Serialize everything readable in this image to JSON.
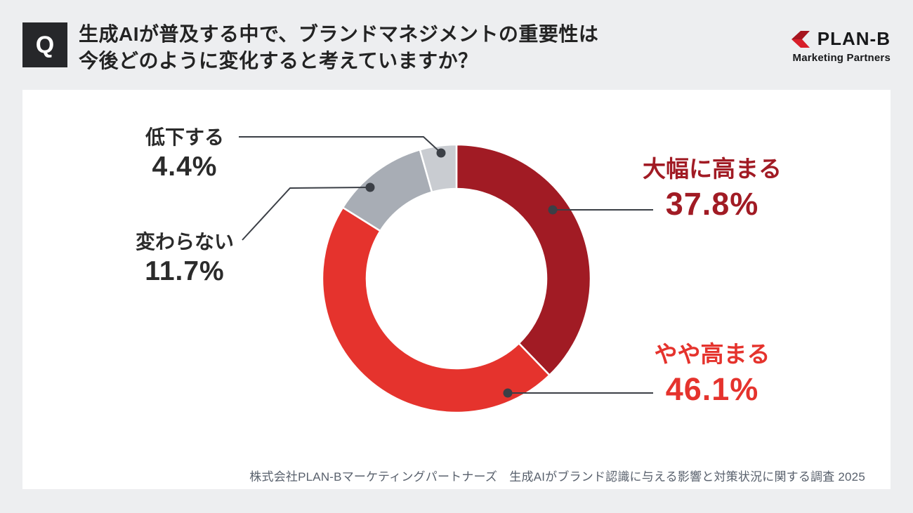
{
  "page": {
    "background": "#EDEEF0",
    "card_background": "#FFFFFF"
  },
  "header": {
    "q_badge": "Q",
    "title_line1": "生成AIが普及する中で、ブランドマネジメントの重要性は",
    "title_line2": "今後どのように変化すると考えていますか？"
  },
  "logo": {
    "brand": "PLAN-B",
    "subtitle": "Marketing Partners",
    "icon": "planb-chevron-icon",
    "icon_colors": [
      "#A6151F",
      "#D81E29"
    ]
  },
  "chart_data": {
    "type": "pie",
    "subtype": "donut",
    "title": "生成AIが普及する中で、ブランドマネジメントの重要性は今後どのように変化すると考えていますか？",
    "unit": "%",
    "start_angle_deg": 0,
    "direction": "clockwise",
    "grid": false,
    "legend_position": "callouts",
    "segments": [
      {
        "label": "大幅に高まる",
        "value": 37.8,
        "value_text": "37.8%",
        "color": "#A11B24",
        "text_color": "#A11B24"
      },
      {
        "label": "やや高まる",
        "value": 46.1,
        "value_text": "46.1%",
        "color": "#E5332D",
        "text_color": "#E5332D"
      },
      {
        "label": "変わらない",
        "value": 11.7,
        "value_text": "11.7%",
        "color": "#A8ADB5",
        "text_color": "#2B2B2B"
      },
      {
        "label": "低下する",
        "value": 4.4,
        "value_text": "4.4%",
        "color": "#C9CCD1",
        "text_color": "#2B2B2B"
      }
    ],
    "leader_line_color": "#3B3F46"
  },
  "footer": {
    "source": "株式会社PLAN-Bマーケティングパートナーズ　生成AIがブランド認識に与える影響と対策状況に関する調査 2025"
  }
}
